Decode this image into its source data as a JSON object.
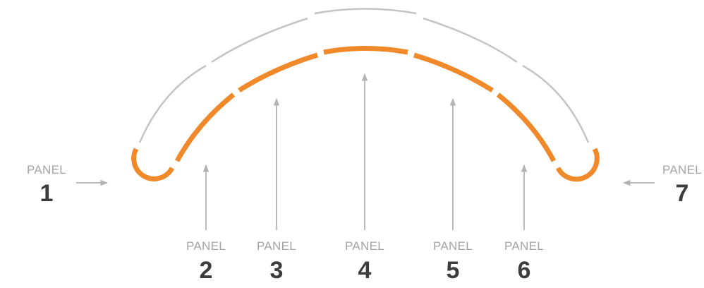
{
  "colors": {
    "outer_arc": "#c4c4c4",
    "panel_curve": "#f0892a",
    "arrow": "#b3b3b3",
    "caption_text": "#a4a4a4",
    "number_text": "#3c3c3c",
    "background": "#ffffff"
  },
  "panels": [
    {
      "caption": "PANEL",
      "number": "1"
    },
    {
      "caption": "PANEL",
      "number": "2"
    },
    {
      "caption": "PANEL",
      "number": "3"
    },
    {
      "caption": "PANEL",
      "number": "4"
    },
    {
      "caption": "PANEL",
      "number": "5"
    },
    {
      "caption": "PANEL",
      "number": "6"
    },
    {
      "caption": "PANEL",
      "number": "7"
    }
  ]
}
